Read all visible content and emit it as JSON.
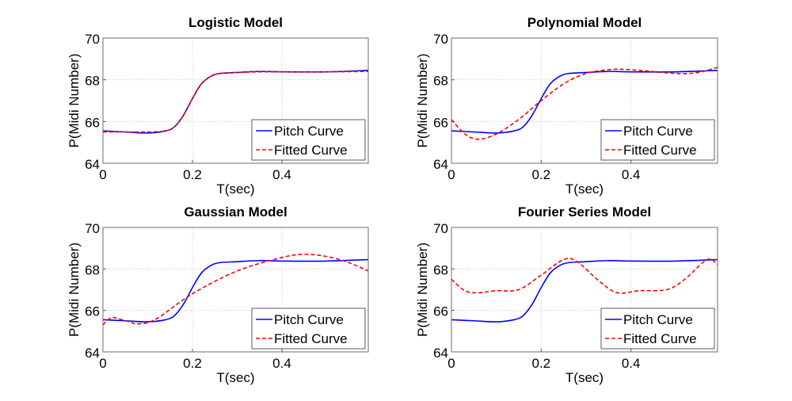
{
  "chart_data": [
    {
      "type": "line",
      "title": "Logistic Model",
      "xlabel": "T(sec)",
      "ylabel": "P(Midi Number)",
      "xlim": [
        0,
        0.593
      ],
      "ylim": [
        64,
        70
      ],
      "xticks": [
        "0",
        "0.2",
        "0.4"
      ],
      "yticks": [
        "64",
        "66",
        "68",
        "70"
      ],
      "grid": true,
      "legend_position": "bottom-right",
      "series": [
        {
          "name": "Pitch Curve",
          "color": "#0000ff",
          "style": "solid",
          "x": [
            0,
            0.05,
            0.1,
            0.14,
            0.16,
            0.18,
            0.2,
            0.22,
            0.24,
            0.26,
            0.3,
            0.35,
            0.4,
            0.5,
            0.593
          ],
          "y": [
            65.55,
            65.5,
            65.45,
            65.55,
            65.75,
            66.3,
            67.1,
            67.8,
            68.15,
            68.3,
            68.35,
            68.4,
            68.38,
            68.38,
            68.45
          ]
        },
        {
          "name": "Fitted Curve",
          "color": "#ff0000",
          "style": "dashed",
          "x": [
            0,
            0.05,
            0.1,
            0.14,
            0.16,
            0.18,
            0.2,
            0.22,
            0.24,
            0.26,
            0.3,
            0.35,
            0.4,
            0.5,
            0.593
          ],
          "y": [
            65.5,
            65.5,
            65.5,
            65.55,
            65.75,
            66.3,
            67.1,
            67.8,
            68.15,
            68.3,
            68.35,
            68.38,
            68.38,
            68.38,
            68.4
          ]
        }
      ]
    },
    {
      "type": "line",
      "title": "Polynomial Model",
      "xlabel": "T(sec)",
      "ylabel": "P(Midi Number)",
      "xlim": [
        0,
        0.593
      ],
      "ylim": [
        64,
        70
      ],
      "xticks": [
        "0",
        "0.2",
        "0.4"
      ],
      "yticks": [
        "64",
        "66",
        "68",
        "70"
      ],
      "grid": true,
      "legend_position": "bottom-right",
      "series": [
        {
          "name": "Pitch Curve",
          "color": "#0000ff",
          "style": "solid",
          "x": [
            0,
            0.05,
            0.1,
            0.14,
            0.16,
            0.18,
            0.2,
            0.22,
            0.24,
            0.26,
            0.3,
            0.35,
            0.4,
            0.5,
            0.593
          ],
          "y": [
            65.55,
            65.5,
            65.45,
            65.55,
            65.75,
            66.3,
            67.1,
            67.8,
            68.15,
            68.3,
            68.35,
            68.4,
            68.38,
            68.38,
            68.45
          ]
        },
        {
          "name": "Fitted Curve",
          "color": "#ff0000",
          "style": "dashed",
          "x": [
            0,
            0.03,
            0.06,
            0.1,
            0.15,
            0.2,
            0.25,
            0.3,
            0.36,
            0.42,
            0.5,
            0.55,
            0.593
          ],
          "y": [
            66.1,
            65.4,
            65.15,
            65.4,
            66.1,
            67.0,
            67.8,
            68.3,
            68.5,
            68.45,
            68.3,
            68.35,
            68.6
          ]
        }
      ]
    },
    {
      "type": "line",
      "title": "Gaussian Model",
      "xlabel": "T(sec)",
      "ylabel": "P(Midi Number)",
      "xlim": [
        0,
        0.593
      ],
      "ylim": [
        64,
        70
      ],
      "xticks": [
        "0",
        "0.2",
        "0.4"
      ],
      "yticks": [
        "64",
        "66",
        "68",
        "70"
      ],
      "grid": true,
      "legend_position": "bottom-right",
      "series": [
        {
          "name": "Pitch Curve",
          "color": "#0000ff",
          "style": "solid",
          "x": [
            0,
            0.05,
            0.1,
            0.14,
            0.16,
            0.18,
            0.2,
            0.22,
            0.24,
            0.26,
            0.3,
            0.35,
            0.4,
            0.5,
            0.593
          ],
          "y": [
            65.55,
            65.5,
            65.45,
            65.55,
            65.75,
            66.3,
            67.1,
            67.8,
            68.15,
            68.3,
            68.35,
            68.4,
            68.38,
            68.38,
            68.45
          ]
        },
        {
          "name": "Fitted Curve",
          "color": "#ff0000",
          "style": "dashed",
          "x": [
            0,
            0.02,
            0.05,
            0.08,
            0.12,
            0.2,
            0.3,
            0.4,
            0.45,
            0.5,
            0.55,
            0.593
          ],
          "y": [
            65.3,
            65.65,
            65.5,
            65.35,
            65.6,
            66.8,
            67.9,
            68.55,
            68.7,
            68.6,
            68.3,
            67.9
          ]
        }
      ]
    },
    {
      "type": "line",
      "title": "Fourier Series Model",
      "xlabel": "T(sec)",
      "ylabel": "P(Midi Number)",
      "xlim": [
        0,
        0.593
      ],
      "ylim": [
        64,
        70
      ],
      "xticks": [
        "0",
        "0.2",
        "0.4"
      ],
      "yticks": [
        "64",
        "66",
        "68",
        "70"
      ],
      "grid": true,
      "legend_position": "bottom-right",
      "series": [
        {
          "name": "Pitch Curve",
          "color": "#0000ff",
          "style": "solid",
          "x": [
            0,
            0.05,
            0.1,
            0.14,
            0.16,
            0.18,
            0.2,
            0.22,
            0.24,
            0.26,
            0.3,
            0.35,
            0.4,
            0.5,
            0.593
          ],
          "y": [
            65.55,
            65.5,
            65.45,
            65.55,
            65.75,
            66.3,
            67.1,
            67.8,
            68.15,
            68.3,
            68.35,
            68.4,
            68.38,
            68.38,
            68.45
          ]
        },
        {
          "name": "Fitted Curve",
          "color": "#ff0000",
          "style": "dashed",
          "x": [
            0,
            0.03,
            0.06,
            0.1,
            0.15,
            0.2,
            0.25,
            0.28,
            0.33,
            0.37,
            0.42,
            0.48,
            0.52,
            0.57,
            0.593
          ],
          "y": [
            67.5,
            66.95,
            66.85,
            66.95,
            67.0,
            67.7,
            68.45,
            68.35,
            67.4,
            66.85,
            66.95,
            67.0,
            67.5,
            68.45,
            68.2
          ]
        }
      ]
    }
  ]
}
